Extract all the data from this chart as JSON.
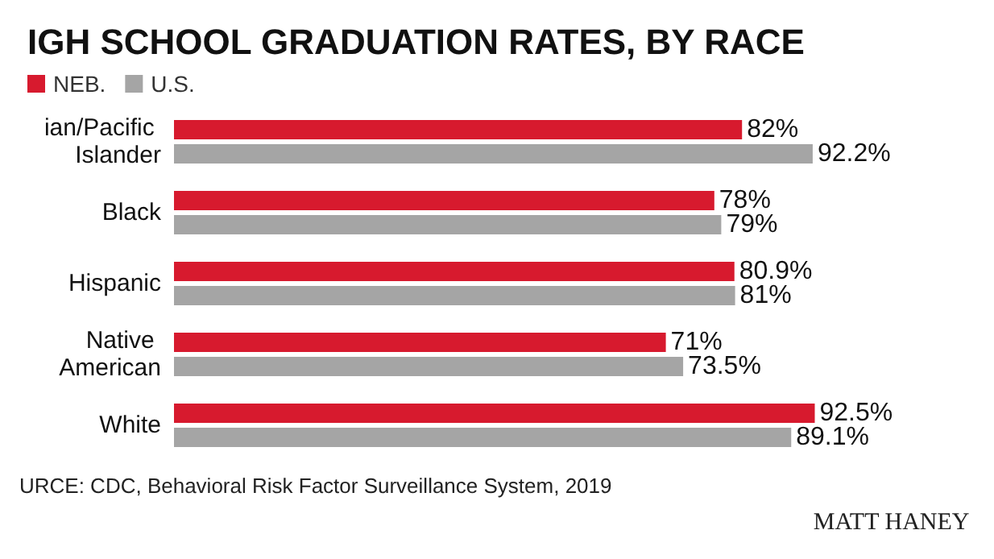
{
  "chart_data": {
    "type": "bar",
    "orientation": "horizontal",
    "title": "IGH SCHOOL GRADUATION RATES, BY RACE",
    "categories": [
      "ian/Pacific Islander",
      "Black",
      "Hispanic",
      "Native American",
      "White"
    ],
    "series": [
      {
        "name": "NEB.",
        "color": "#d71a2e",
        "values": [
          82,
          78,
          80.9,
          71,
          92.5
        ],
        "value_labels": [
          "82%",
          "78%",
          "80.9%",
          "71%",
          "92.5%"
        ]
      },
      {
        "name": "U.S.",
        "color": "#a5a5a5",
        "values": [
          92.2,
          79,
          81,
          73.5,
          89.1
        ],
        "value_labels": [
          "92.2%",
          "79%",
          "81%",
          "73.5%",
          "89.1%"
        ]
      }
    ],
    "tick_labels": "y",
    "legend": "top left",
    "annotations": [
      "URCE: CDC, Behavioral Risk Factor Surveillance System, 2019",
      "MATT HANEY"
    ]
  }
}
